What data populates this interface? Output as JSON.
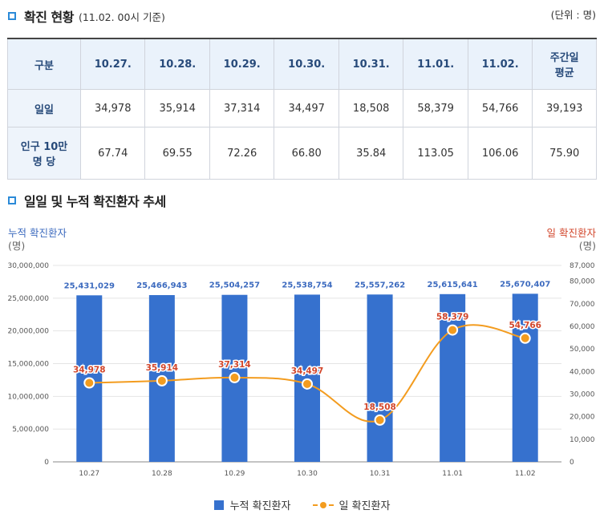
{
  "section1": {
    "title": "확진 현황",
    "subtitle": "(11.02. 00시 기준)",
    "unit": "(단위 : 명)"
  },
  "table": {
    "corner": "구분",
    "headers": [
      "10.27.",
      "10.28.",
      "10.29.",
      "10.30.",
      "10.31.",
      "11.01.",
      "11.02."
    ],
    "avg_header_line1": "주간일",
    "avg_header_line2": "평균",
    "rows": [
      {
        "label_line1": "일일",
        "label_line2": "",
        "values": [
          "34,978",
          "35,914",
          "37,314",
          "34,497",
          "18,508",
          "58,379",
          "54,766"
        ],
        "avg": "39,193"
      },
      {
        "label_line1": "인구 10만",
        "label_line2": "명 당",
        "values": [
          "67.74",
          "69.55",
          "72.26",
          "66.80",
          "35.84",
          "113.05",
          "106.06"
        ],
        "avg": "75.90"
      }
    ]
  },
  "section2": {
    "title": "일일 및 누적 확진환자 추세"
  },
  "axis_titles": {
    "left": "누적 확진환자",
    "left_unit": "(명)",
    "right": "일 확진환자",
    "right_unit": "(명)"
  },
  "colors": {
    "bar": "#3671ce",
    "line": "#f39c1f",
    "bar_label": "#3d6bbf",
    "line_label": "#d2462b"
  },
  "chart_data": {
    "type": "bar",
    "categories": [
      "10.27",
      "10.28",
      "10.29",
      "10.30",
      "10.31",
      "11.01",
      "11.02"
    ],
    "series": [
      {
        "name": "누적 확진환자",
        "type": "bar",
        "axis": "left",
        "values": [
          25431029,
          25466943,
          25504257,
          25538754,
          25557262,
          25615641,
          25670407
        ],
        "labels": [
          "25,431,029",
          "25,466,943",
          "25,504,257",
          "25,538,754",
          "25,557,262",
          "25,615,641",
          "25,670,407"
        ]
      },
      {
        "name": "일 확진환자",
        "type": "line",
        "axis": "right",
        "values": [
          34978,
          35914,
          37314,
          34497,
          18508,
          58379,
          54766
        ],
        "labels": [
          "34,978",
          "35,914",
          "37,314",
          "34,497",
          "18,508",
          "58,379",
          "54,766"
        ]
      }
    ],
    "y_left": {
      "min": 0,
      "max": 30000000,
      "ticks": [
        0,
        5000000,
        10000000,
        15000000,
        20000000,
        25000000,
        30000000
      ],
      "tick_labels": [
        "0",
        "5,000,000",
        "10,000,000",
        "15,000,000",
        "20,000,000",
        "25,000,000",
        "30,000,000"
      ]
    },
    "y_right": {
      "min": 0,
      "max": 87000,
      "ticks": [
        0,
        10000,
        20000,
        30000,
        40000,
        50000,
        60000,
        70000,
        80000,
        87000
      ],
      "tick_labels": [
        "0",
        "10,000",
        "20,000",
        "30,000",
        "40,000",
        "50,000",
        "60,000",
        "70,000",
        "80,000",
        "87,000"
      ]
    },
    "grid": true,
    "legend_position": "bottom"
  }
}
